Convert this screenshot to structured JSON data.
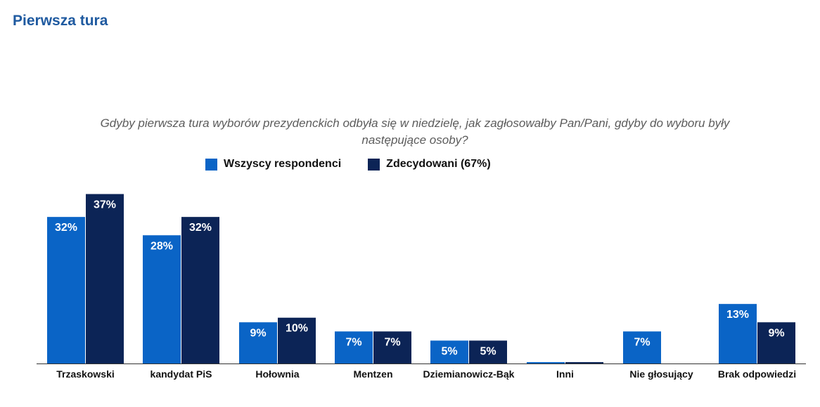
{
  "page": {
    "title": "Pierwsza tura"
  },
  "colors": {
    "series_all": "#0a64c6",
    "series_decided": "#0c2456",
    "title": "#1f5aa0"
  },
  "chart_data": {
    "type": "bar",
    "title": "Gdyby pierwsza tura wyborów prezydenckich odbyła się w niedzielę, jak zagłosowałby Pan/Pani, gdyby do wyboru były następujące osoby?",
    "categories": [
      "Trzaskowski",
      "kandydat PiS",
      "Hołownia",
      "Mentzen",
      "Dziemianowicz-Bąk",
      "Inni",
      "Nie głosujący",
      "Brak odpowiedzi"
    ],
    "series": [
      {
        "name": "Wszyscy respondenci",
        "values": [
          32,
          28,
          9,
          7,
          5,
          0.3,
          7,
          13
        ],
        "labels": [
          "32%",
          "28%",
          "9%",
          "7%",
          "5%",
          "",
          "7%",
          "13%"
        ]
      },
      {
        "name": "Zdecydowani (67%)",
        "values": [
          37,
          32,
          10,
          7,
          5,
          0.3,
          null,
          9
        ],
        "labels": [
          "37%",
          "32%",
          "10%",
          "7%",
          "5%",
          "",
          "",
          "9%"
        ]
      }
    ],
    "ylim": [
      0,
      38
    ],
    "legend": "top",
    "grid": false
  }
}
